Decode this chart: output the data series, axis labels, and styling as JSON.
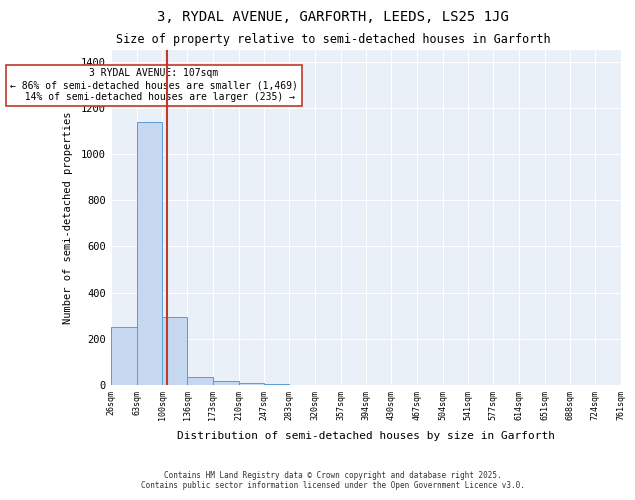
{
  "title1": "3, RYDAL AVENUE, GARFORTH, LEEDS, LS25 1JG",
  "title2": "Size of property relative to semi-detached houses in Garforth",
  "xlabel": "Distribution of semi-detached houses by size in Garforth",
  "ylabel": "Number of semi-detached properties",
  "bin_edges": [
    26,
    63,
    100,
    136,
    173,
    210,
    247,
    283,
    320,
    357,
    394,
    430,
    467,
    504,
    541,
    577,
    614,
    651,
    688,
    724,
    761
  ],
  "bar_heights": [
    250,
    1140,
    295,
    35,
    18,
    8,
    4,
    0,
    0,
    0,
    0,
    0,
    0,
    0,
    0,
    0,
    0,
    0,
    0,
    0
  ],
  "bar_color": "#c5d8f0",
  "bar_edge_color": "#5b9bd5",
  "vline_x": 107,
  "vline_color": "#c0392b",
  "annotation_text": "3 RYDAL AVENUE: 107sqm\n← 86% of semi-detached houses are smaller (1,469)\n  14% of semi-detached houses are larger (235) →",
  "annotation_box_color": "#ffffff",
  "annotation_box_edge_color": "#c0392b",
  "ylim": [
    0,
    1450
  ],
  "yticks": [
    0,
    200,
    400,
    600,
    800,
    1000,
    1200,
    1400
  ],
  "background_color": "#eaf0f8",
  "grid_color": "#ffffff",
  "footer1": "Contains HM Land Registry data © Crown copyright and database right 2025.",
  "footer2": "Contains public sector information licensed under the Open Government Licence v3.0."
}
